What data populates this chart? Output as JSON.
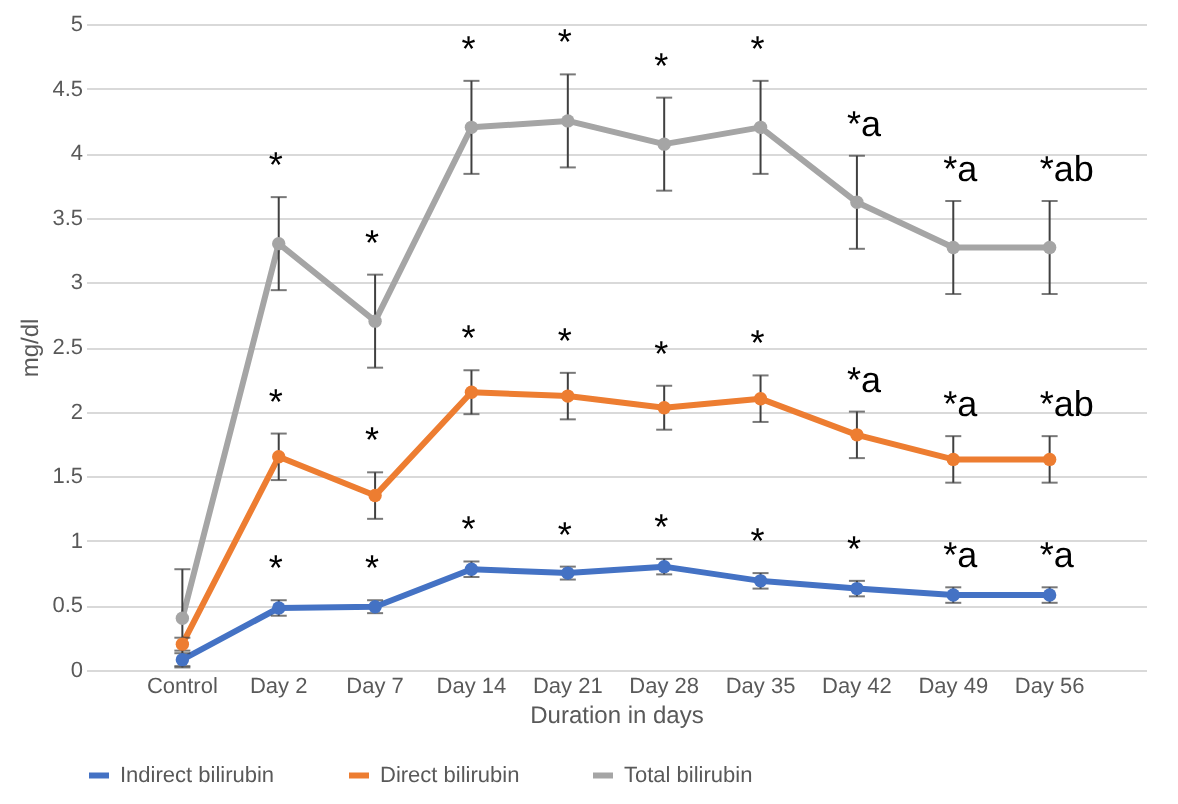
{
  "chart_data": {
    "type": "line",
    "xlabel": "Duration in days",
    "ylabel": "mg/dl",
    "categories": [
      "Control",
      "Day 2",
      "Day 7",
      "Day 14",
      "Day 21",
      "Day 28",
      "Day 35",
      "Day 42",
      "Day 49",
      "Day 56"
    ],
    "series": [
      {
        "name": "Indirect bilirubin",
        "color": "#4472c4",
        "values": [
          0.08,
          0.48,
          0.49,
          0.78,
          0.75,
          0.8,
          0.69,
          0.63,
          0.58,
          0.58
        ],
        "errors": [
          0.05,
          0.06,
          0.05,
          0.06,
          0.05,
          0.06,
          0.06,
          0.06,
          0.06,
          0.06
        ]
      },
      {
        "name": "Direct bilirubin",
        "color": "#ed7d31",
        "values": [
          0.2,
          1.65,
          1.35,
          2.15,
          2.12,
          2.03,
          2.1,
          1.82,
          1.63,
          1.63
        ],
        "errors": [
          0.05,
          0.18,
          0.18,
          0.17,
          0.18,
          0.17,
          0.18,
          0.18,
          0.18,
          0.18
        ]
      },
      {
        "name": "Total bilirubin",
        "color": "#a5a5a5",
        "values": [
          0.4,
          3.3,
          2.7,
          4.2,
          4.25,
          4.07,
          4.2,
          3.62,
          3.27,
          3.27
        ],
        "errors": [
          0.38,
          0.36,
          0.36,
          0.36,
          0.36,
          0.36,
          0.36,
          0.36,
          0.36,
          0.36
        ]
      }
    ],
    "ylim": [
      0,
      5
    ],
    "yticks": [
      0,
      0.5,
      1,
      1.5,
      2,
      2.5,
      3,
      3.5,
      4,
      4.5,
      5
    ],
    "grid": "y",
    "legend": "bottom",
    "marker": "circle",
    "line_style": "solid",
    "annotations": [
      {
        "text": "*",
        "x": "Day 2",
        "y": 0.48
      },
      {
        "text": "*",
        "x": "Day 7",
        "y": 0.49
      },
      {
        "text": "*",
        "x": "Day 14",
        "y": 0.78
      },
      {
        "text": "*",
        "x": "Day 21",
        "y": 0.75
      },
      {
        "text": "*",
        "x": "Day 28",
        "y": 0.8
      },
      {
        "text": "*",
        "x": "Day 35",
        "y": 0.69
      },
      {
        "text": "*",
        "x": "Day 42",
        "y": 0.63
      },
      {
        "text": "*a",
        "x": "Day 49",
        "y": 0.58
      },
      {
        "text": "*a",
        "x": "Day 56",
        "y": 0.58
      },
      {
        "text": "*",
        "x": "Day 2",
        "y": 1.65
      },
      {
        "text": "*",
        "x": "Day 7",
        "y": 1.35
      },
      {
        "text": "*",
        "x": "Day 14",
        "y": 2.15
      },
      {
        "text": "*",
        "x": "Day 21",
        "y": 2.12
      },
      {
        "text": "*",
        "x": "Day 28",
        "y": 2.03
      },
      {
        "text": "*",
        "x": "Day 35",
        "y": 2.1
      },
      {
        "text": "*a",
        "x": "Day 42",
        "y": 1.82
      },
      {
        "text": "*a",
        "x": "Day 49",
        "y": 1.63
      },
      {
        "text": "*ab",
        "x": "Day 56",
        "y": 1.63
      },
      {
        "text": "*",
        "x": "Day 2",
        "y": 3.3
      },
      {
        "text": "*",
        "x": "Day 7",
        "y": 2.7
      },
      {
        "text": "*",
        "x": "Day 14",
        "y": 4.2
      },
      {
        "text": "*",
        "x": "Day 21",
        "y": 4.25
      },
      {
        "text": "*",
        "x": "Day 28",
        "y": 4.07
      },
      {
        "text": "*",
        "x": "Day 35",
        "y": 4.2
      },
      {
        "text": "*a",
        "x": "Day 42",
        "y": 3.62
      },
      {
        "text": "*a",
        "x": "Day 49",
        "y": 3.27
      },
      {
        "text": "*ab",
        "x": "Day 56",
        "y": 3.27
      }
    ]
  }
}
